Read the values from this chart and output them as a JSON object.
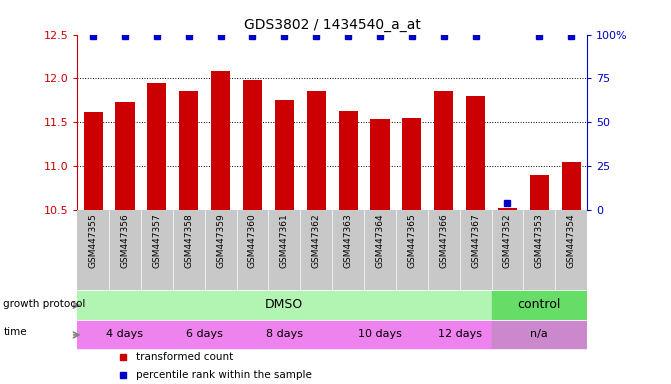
{
  "title": "GDS3802 / 1434540_a_at",
  "samples": [
    "GSM447355",
    "GSM447356",
    "GSM447357",
    "GSM447358",
    "GSM447359",
    "GSM447360",
    "GSM447361",
    "GSM447362",
    "GSM447363",
    "GSM447364",
    "GSM447365",
    "GSM447366",
    "GSM447367",
    "GSM447352",
    "GSM447353",
    "GSM447354"
  ],
  "bar_values": [
    11.62,
    11.73,
    11.95,
    11.85,
    12.08,
    11.98,
    11.75,
    11.85,
    11.63,
    11.53,
    11.55,
    11.85,
    11.8,
    10.52,
    10.9,
    11.05
  ],
  "percentile_values": [
    99,
    99,
    99,
    99,
    99,
    99,
    99,
    99,
    99,
    99,
    99,
    99,
    99,
    4,
    99,
    99
  ],
  "ylim_left": [
    10.5,
    12.5
  ],
  "ylim_right": [
    0,
    100
  ],
  "yticks_left": [
    10.5,
    11.0,
    11.5,
    12.0,
    12.5
  ],
  "yticks_right": [
    0,
    25,
    50,
    75,
    100
  ],
  "ytick_labels_right": [
    "0",
    "25",
    "50",
    "75",
    "100%"
  ],
  "bar_color": "#cc0000",
  "percentile_color": "#0000cc",
  "background_color": "#ffffff",
  "tick_color_left": "#cc0000",
  "tick_color_right": "#0000cc",
  "xtick_bg": "#c8c8c8",
  "growth_protocol_label": "growth protocol",
  "time_label": "time",
  "dmso_color": "#b2f5b2",
  "control_color": "#66dd66",
  "time_dmso_color": "#ee82ee",
  "time_na_color": "#cc88cc",
  "legend_red": "transformed count",
  "legend_blue": "percentile rank within the sample",
  "bar_width": 0.6,
  "time_groups_starts": [
    0,
    3,
    5,
    8,
    11,
    13
  ],
  "time_groups_ends": [
    2,
    4,
    7,
    10,
    12,
    15
  ],
  "time_groups_labels": [
    "4 days",
    "6 days",
    "8 days",
    "10 days",
    "12 days",
    "n/a"
  ]
}
